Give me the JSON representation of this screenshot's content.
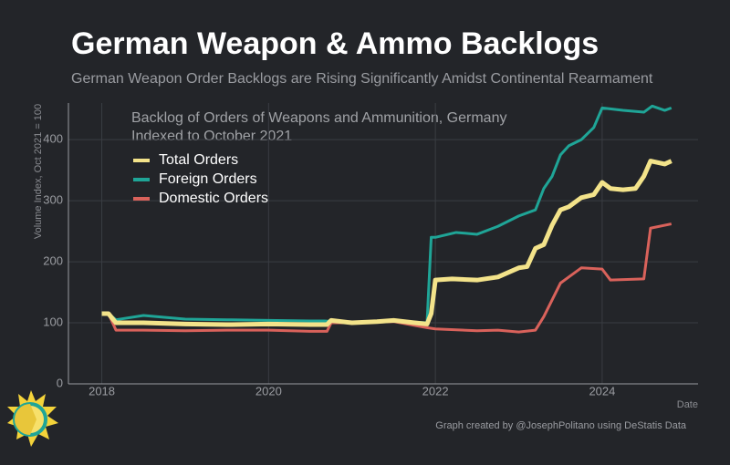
{
  "chart_data": {
    "type": "line",
    "title": "German Weapon & Ammo Backlogs",
    "subtitle": "German Weapon Order Backlogs are Rising Significantly Amidst Continental Rearmament",
    "chart_title": [
      "Backlog of Orders of Weapons and Ammunition, Germany",
      "Indexed to October 2021"
    ],
    "ylabel": "Volume Index, Oct 2021 = 100",
    "xlabel": "Date",
    "credit": "Graph created by @JosephPolitano using DeStatis Data",
    "xlim": [
      2017.6,
      2025.15
    ],
    "xticks": [
      2018,
      2020,
      2022,
      2024
    ],
    "ylim": [
      0,
      460
    ],
    "yticks": [
      0,
      100,
      200,
      300,
      400
    ],
    "grid": true,
    "legend": "upper left",
    "series": [
      {
        "name": "Domestic Orders",
        "color": "#d9625b",
        "x": [
          2018.0,
          2018.08,
          2018.17,
          2018.5,
          2019.0,
          2019.5,
          2020.0,
          2020.5,
          2020.7,
          2020.75,
          2021.0,
          2021.5,
          2021.9,
          2022.0,
          2022.5,
          2022.75,
          2023.0,
          2023.2,
          2023.3,
          2023.5,
          2023.6,
          2023.75,
          2024.0,
          2024.1,
          2024.5,
          2024.58,
          2024.83
        ],
        "values": [
          115,
          115,
          88,
          88,
          87,
          88,
          88,
          86,
          86,
          100,
          100,
          102,
          92,
          90,
          87,
          88,
          85,
          88,
          110,
          165,
          175,
          190,
          188,
          170,
          172,
          255,
          262
        ]
      },
      {
        "name": "Foreign Orders",
        "color": "#1fa597",
        "x": [
          2018.0,
          2018.08,
          2018.17,
          2018.5,
          2019.0,
          2019.5,
          2020.0,
          2020.5,
          2020.67,
          2021.0,
          2021.5,
          2021.9,
          2021.95,
          2022.0,
          2022.25,
          2022.5,
          2022.75,
          2023.0,
          2023.2,
          2023.3,
          2023.4,
          2023.5,
          2023.6,
          2023.75,
          2023.9,
          2024.0,
          2024.25,
          2024.5,
          2024.6,
          2024.75,
          2024.83
        ],
        "values": [
          115,
          115,
          105,
          112,
          106,
          105,
          104,
          103,
          103,
          100,
          103,
          100,
          240,
          240,
          248,
          245,
          258,
          275,
          285,
          320,
          340,
          375,
          390,
          400,
          420,
          452,
          448,
          445,
          455,
          448,
          452
        ]
      },
      {
        "name": "Total Orders",
        "color": "#f3e38a",
        "x": [
          2018.0,
          2018.08,
          2018.17,
          2018.5,
          2019.0,
          2019.5,
          2020.0,
          2020.5,
          2020.7,
          2020.75,
          2021.0,
          2021.3,
          2021.5,
          2021.75,
          2021.9,
          2021.95,
          2022.0,
          2022.2,
          2022.5,
          2022.75,
          2023.0,
          2023.1,
          2023.2,
          2023.3,
          2023.4,
          2023.5,
          2023.6,
          2023.75,
          2023.9,
          2024.0,
          2024.1,
          2024.25,
          2024.4,
          2024.5,
          2024.58,
          2024.75,
          2024.83
        ],
        "values": [
          115,
          115,
          100,
          100,
          98,
          97,
          98,
          97,
          97,
          104,
          100,
          102,
          104,
          100,
          98,
          115,
          170,
          172,
          170,
          175,
          190,
          192,
          222,
          228,
          260,
          285,
          290,
          305,
          310,
          330,
          320,
          318,
          320,
          340,
          365,
          360,
          365
        ]
      }
    ]
  }
}
